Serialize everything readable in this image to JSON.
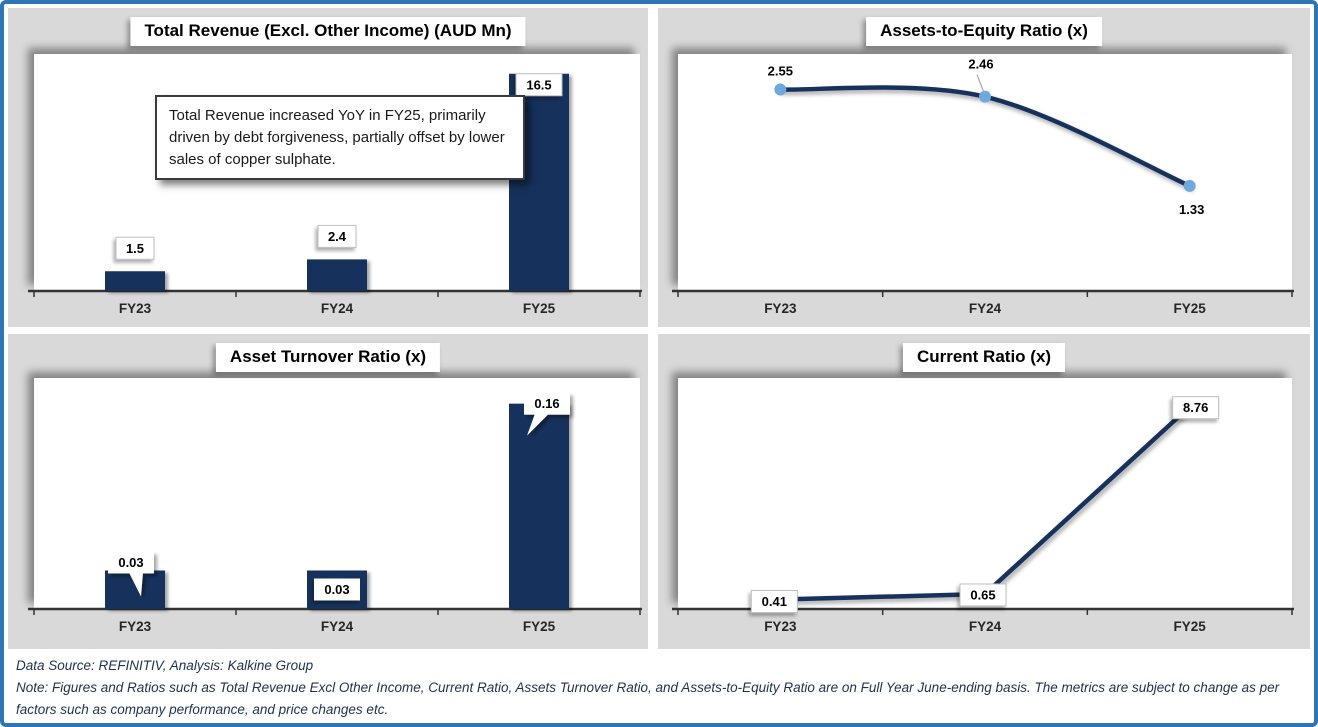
{
  "colors": {
    "frame": "#2E75B6",
    "panel": "#D9D9D9",
    "bar": "#18305C",
    "line": "#18305C",
    "marker": "#6FA8DC",
    "axis": "#333333",
    "label_box_border": "#BFBFBF"
  },
  "chart_data": [
    {
      "type": "bar",
      "title": "Total Revenue (Excl. Other Income) (AUD Mn)",
      "categories": [
        "FY23",
        "FY24",
        "FY25"
      ],
      "values": [
        1.5,
        2.4,
        16.5
      ],
      "labels": [
        "1.5",
        "2.4",
        "16.5"
      ],
      "ylim": [
        0,
        18
      ],
      "grid": false,
      "legend": "none",
      "annotation": "Total Revenue increased YoY in FY25, primarily driven by debt forgiveness, partially offset by lower sales of copper sulphate."
    },
    {
      "type": "line",
      "title": "Assets-to-Equity Ratio (x)",
      "categories": [
        "FY23",
        "FY24",
        "FY25"
      ],
      "values": [
        2.55,
        2.46,
        1.33
      ],
      "labels": [
        "2.55",
        "2.46",
        "1.33"
      ],
      "ylim": [
        0,
        3
      ],
      "smooth": true,
      "markers": true,
      "grid": false,
      "legend": "none"
    },
    {
      "type": "bar",
      "title": "Asset Turnover Ratio (x)",
      "categories": [
        "FY23",
        "FY24",
        "FY25"
      ],
      "values": [
        0.03,
        0.03,
        0.16
      ],
      "labels": [
        "0.03",
        "0.03",
        "0.16"
      ],
      "ylim": [
        0,
        0.18
      ],
      "grid": false,
      "legend": "none"
    },
    {
      "type": "line",
      "title": "Current Ratio (x)",
      "categories": [
        "FY23",
        "FY24",
        "FY25"
      ],
      "values": [
        0.41,
        0.65,
        8.76
      ],
      "labels": [
        "0.41",
        "0.65",
        "8.76"
      ],
      "ylim": [
        0,
        10
      ],
      "smooth": false,
      "markers": false,
      "grid": false,
      "legend": "none"
    }
  ],
  "footer": {
    "source_line": "Data Source: REFINITIV, Analysis: Kalkine Group",
    "note_line": "Note: Figures and Ratios such as Total Revenue Excl Other Income, Current Ratio, Assets Turnover Ratio, and Assets-to-Equity Ratio are on Full Year June-ending basis. The metrics are subject to change as per factors such as company performance, and price changes etc."
  }
}
